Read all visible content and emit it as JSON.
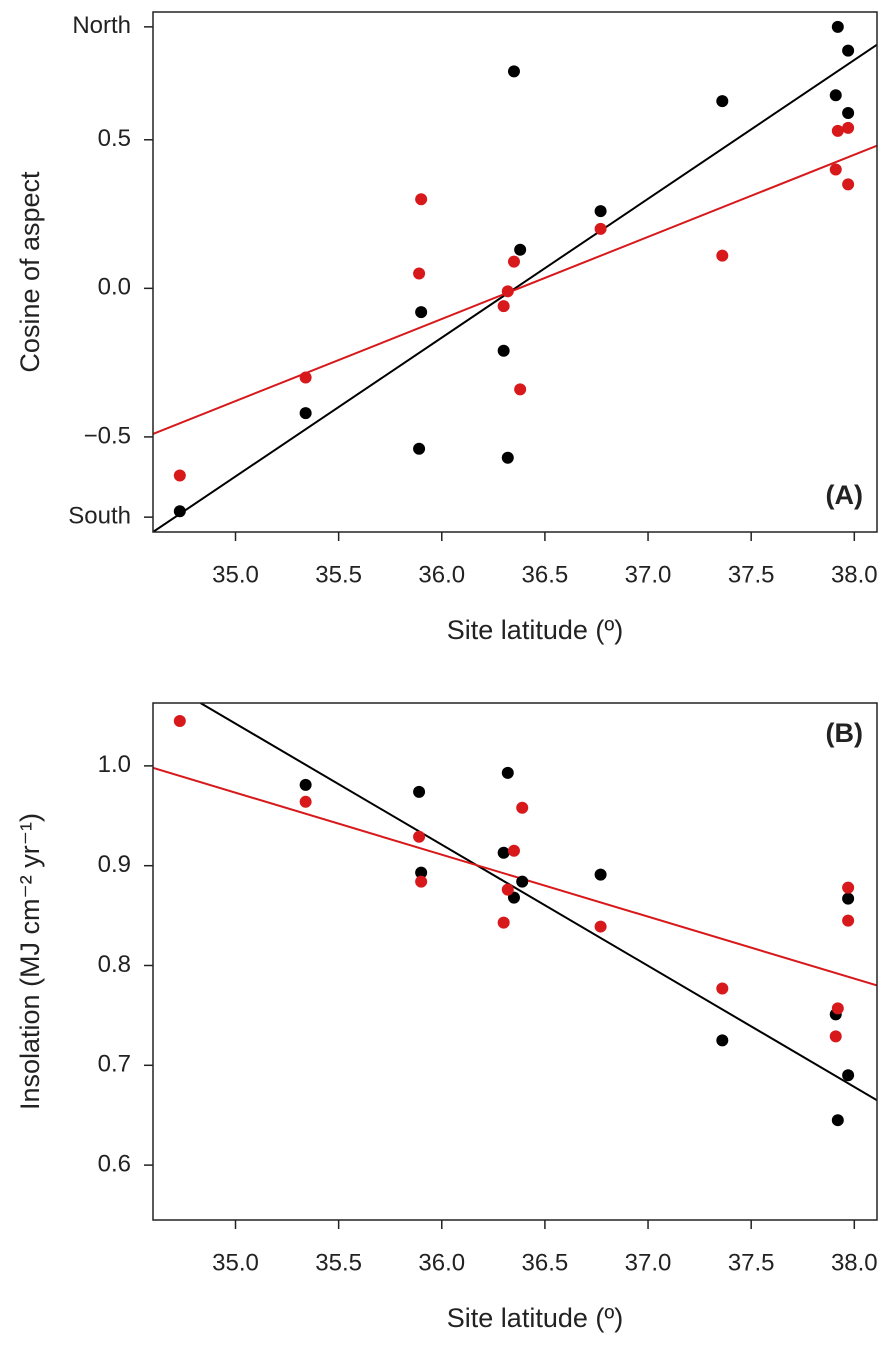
{
  "chart_data": [
    {
      "type": "scatter",
      "annotation": "(A)",
      "annotation_position": "bottom-right",
      "xlabel": "Site latitude (º)",
      "ylabel": "Cosine of aspect",
      "xlim": [
        34.6,
        38.11
      ],
      "ylim": [
        -0.82,
        0.93
      ],
      "xticks": [
        {
          "value": 35,
          "label": "35.0"
        },
        35.5,
        {
          "value": 36,
          "label": "36.0"
        },
        36.5,
        {
          "value": 37,
          "label": "37.0"
        },
        37.5,
        {
          "value": 38,
          "label": "38.0"
        }
      ],
      "yticks": [
        {
          "value": -0.77,
          "label": "South"
        },
        {
          "value": -0.5,
          "label": "−0.5"
        },
        {
          "value": 0,
          "label": "0.0"
        },
        0.5,
        {
          "value": 0.88,
          "label": "North"
        }
      ],
      "series": [
        {
          "color": "#000000",
          "mode": "markers",
          "x": [
            34.73,
            35.34,
            35.9,
            35.89,
            36.3,
            36.32,
            36.35,
            36.38,
            36.77,
            37.36,
            37.92,
            37.97,
            37.91,
            37.97
          ],
          "values": [
            -0.75,
            -0.42,
            -0.08,
            -0.54,
            -0.21,
            -0.57,
            0.73,
            0.13,
            0.26,
            0.63,
            0.88,
            0.8,
            0.65,
            0.59
          ]
        },
        {
          "color": "#d7191c",
          "mode": "markers",
          "x": [
            34.73,
            35.34,
            35.9,
            35.89,
            36.3,
            36.32,
            36.35,
            36.38,
            36.77,
            37.36,
            37.92,
            37.97,
            37.91,
            37.97
          ],
          "values": [
            -0.63,
            -0.3,
            0.3,
            0.05,
            -0.06,
            -0.01,
            0.09,
            -0.34,
            0.2,
            0.11,
            0.53,
            0.54,
            0.4,
            0.35
          ]
        },
        {
          "color": "#000000",
          "mode": "line",
          "x": [
            34.6,
            38.11
          ],
          "values": [
            -0.82,
            0.82
          ]
        },
        {
          "color": "#d7191c",
          "mode": "line",
          "x": [
            34.6,
            38.11
          ],
          "values": [
            -0.49,
            0.48
          ]
        }
      ]
    },
    {
      "type": "scatter",
      "annotation": "(B)",
      "annotation_position": "top-right",
      "xlabel": "Site latitude (º)",
      "ylabel": "Insolation (MJ cm⁻² yr⁻¹)",
      "xlim": [
        34.6,
        38.11
      ],
      "ylim": [
        0.545,
        1.063
      ],
      "xticks": [
        {
          "value": 35,
          "label": "35.0"
        },
        35.5,
        {
          "value": 36,
          "label": "36.0"
        },
        36.5,
        {
          "value": 37,
          "label": "37.0"
        },
        37.5,
        {
          "value": 38,
          "label": "38.0"
        }
      ],
      "yticks": [
        0.6,
        0.7,
        0.8,
        0.9,
        {
          "value": 1,
          "label": "1.0"
        }
      ],
      "series": [
        {
          "color": "#000000",
          "mode": "markers",
          "x": [
            35.34,
            35.89,
            35.9,
            36.3,
            36.32,
            36.35,
            36.39,
            36.77,
            37.36,
            37.92,
            37.97,
            37.91,
            37.97
          ],
          "values": [
            0.981,
            0.974,
            0.893,
            0.913,
            0.993,
            0.868,
            0.884,
            0.891,
            0.725,
            0.645,
            0.69,
            0.751,
            0.867
          ]
        },
        {
          "color": "#d7191c",
          "mode": "markers",
          "x": [
            34.73,
            35.34,
            35.89,
            35.9,
            36.3,
            36.32,
            36.35,
            36.39,
            36.77,
            37.36,
            37.92,
            37.91,
            37.97,
            37.97
          ],
          "values": [
            1.045,
            0.964,
            0.929,
            0.884,
            0.843,
            0.876,
            0.915,
            0.958,
            0.839,
            0.777,
            0.757,
            0.729,
            0.878,
            0.845
          ]
        },
        {
          "color": "#000000",
          "mode": "line",
          "x": [
            34.83,
            38.11
          ],
          "values": [
            1.063,
            0.665
          ]
        },
        {
          "color": "#d7191c",
          "mode": "line",
          "x": [
            34.6,
            38.11
          ],
          "values": [
            0.998,
            0.78
          ]
        }
      ]
    }
  ]
}
